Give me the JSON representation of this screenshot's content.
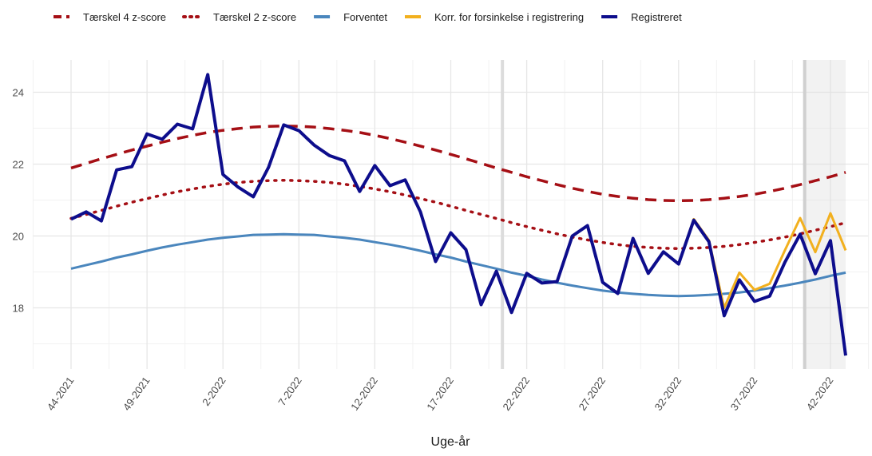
{
  "chart_data": {
    "type": "line",
    "x_label": "Uge-år",
    "categories": [
      "44-2021",
      null,
      null,
      null,
      null,
      "49-2021",
      null,
      null,
      null,
      null,
      "2-2022",
      null,
      null,
      null,
      null,
      "7-2022",
      null,
      null,
      null,
      null,
      "12-2022",
      null,
      null,
      null,
      null,
      "17-2022",
      null,
      null,
      null,
      null,
      "22-2022",
      null,
      null,
      null,
      null,
      "27-2022",
      null,
      null,
      null,
      null,
      "32-2022",
      null,
      null,
      null,
      null,
      "37-2022",
      null,
      null,
      null,
      null,
      "42-2022",
      null
    ],
    "series": [
      {
        "name": "Tærskel 4 z-score",
        "color": "#a50f15",
        "dash": "dashed",
        "values": [
          21.89,
          22.02,
          22.15,
          22.27,
          22.39,
          22.5,
          22.61,
          22.71,
          22.8,
          22.88,
          22.94,
          22.99,
          23.03,
          23.05,
          23.06,
          23.05,
          23.03,
          22.99,
          22.94,
          22.88,
          22.8,
          22.71,
          22.61,
          22.5,
          22.39,
          22.27,
          22.15,
          22.02,
          21.89,
          21.77,
          21.65,
          21.54,
          21.43,
          21.33,
          21.24,
          21.16,
          21.1,
          21.05,
          21.01,
          20.99,
          20.98,
          20.99,
          21.01,
          21.05,
          21.1,
          21.16,
          21.24,
          21.33,
          21.43,
          21.54,
          21.65,
          21.77
        ]
      },
      {
        "name": "Tærskel 2 z-score",
        "color": "#a50f15",
        "dash": "dotted",
        "values": [
          20.49,
          20.6,
          20.71,
          20.83,
          20.94,
          21.04,
          21.14,
          21.23,
          21.31,
          21.38,
          21.44,
          21.49,
          21.52,
          21.54,
          21.55,
          21.54,
          21.52,
          21.49,
          21.44,
          21.38,
          21.31,
          21.23,
          21.14,
          21.04,
          20.94,
          20.83,
          20.71,
          20.6,
          20.49,
          20.37,
          20.26,
          20.16,
          20.06,
          19.97,
          19.89,
          19.82,
          19.76,
          19.71,
          19.68,
          19.66,
          19.65,
          19.66,
          19.68,
          19.71,
          19.76,
          19.82,
          19.89,
          19.97,
          20.06,
          20.16,
          20.26,
          20.37
        ]
      },
      {
        "name": "Forventet",
        "color": "#4a86bd",
        "dash": "solid",
        "values": [
          19.09,
          19.19,
          19.29,
          19.4,
          19.49,
          19.59,
          19.68,
          19.76,
          19.83,
          19.9,
          19.95,
          19.99,
          20.03,
          20.04,
          20.05,
          20.04,
          20.03,
          19.99,
          19.95,
          19.9,
          19.83,
          19.76,
          19.68,
          19.59,
          19.49,
          19.4,
          19.29,
          19.19,
          19.09,
          18.98,
          18.89,
          18.79,
          18.7,
          18.62,
          18.55,
          18.48,
          18.43,
          18.39,
          18.36,
          18.34,
          18.33,
          18.34,
          18.36,
          18.39,
          18.43,
          18.48,
          18.55,
          18.62,
          18.7,
          18.79,
          18.89,
          18.98
        ]
      },
      {
        "name": "Korr. for forsinkelse i registrering",
        "color": "#f2b01e",
        "dash": "solid",
        "values": [
          null,
          null,
          null,
          null,
          null,
          null,
          null,
          null,
          null,
          null,
          null,
          null,
          null,
          null,
          null,
          null,
          null,
          null,
          null,
          null,
          null,
          null,
          null,
          null,
          null,
          null,
          null,
          null,
          null,
          null,
          null,
          null,
          null,
          null,
          null,
          null,
          null,
          null,
          null,
          null,
          19.22,
          20.47,
          19.88,
          18.0,
          18.98,
          18.5,
          18.67,
          19.6,
          20.5,
          19.55,
          20.63,
          19.6
        ]
      },
      {
        "name": "Registreret",
        "color": "#0d0d8c",
        "dash": "solid",
        "values": [
          20.47,
          20.67,
          20.42,
          21.84,
          21.93,
          22.84,
          22.69,
          23.11,
          22.98,
          24.49,
          21.71,
          21.36,
          21.09,
          21.91,
          23.09,
          22.93,
          22.53,
          22.24,
          22.09,
          21.24,
          21.96,
          21.4,
          21.56,
          20.67,
          19.29,
          20.09,
          19.62,
          18.09,
          19.02,
          17.87,
          18.96,
          18.69,
          18.73,
          20.0,
          20.29,
          18.71,
          18.4,
          19.93,
          18.96,
          19.56,
          19.22,
          20.44,
          19.84,
          17.78,
          18.78,
          18.18,
          18.33,
          19.27,
          20.05,
          18.95,
          19.87,
          16.67
        ]
      }
    ],
    "ylim": [
      16.3,
      24.9
    ],
    "yticks": [
      18,
      20,
      22,
      24
    ],
    "grid": true,
    "legend": "top"
  }
}
